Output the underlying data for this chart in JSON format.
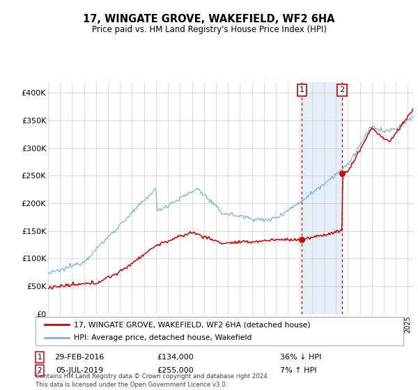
{
  "title": "17, WINGATE GROVE, WAKEFIELD, WF2 6HA",
  "subtitle": "Price paid vs. HM Land Registry's House Price Index (HPI)",
  "legend_line1": "17, WINGATE GROVE, WAKEFIELD, WF2 6HA (detached house)",
  "legend_line2": "HPI: Average price, detached house, Wakefield",
  "footnote": "Contains HM Land Registry data © Crown copyright and database right 2024.\nThis data is licensed under the Open Government Licence v3.0.",
  "transaction1": {
    "label": "1",
    "date": "29-FEB-2016",
    "price": "£134,000",
    "pct": "36% ↓ HPI",
    "x_year": 2016.17,
    "y_val": 134000
  },
  "transaction2": {
    "label": "2",
    "date": "05-JUL-2019",
    "price": "£255,000",
    "pct": "7% ↑ HPI",
    "x_year": 2019.51,
    "y_val": 255000
  },
  "hpi_color": "#7ab3d9",
  "price_color": "#cc0000",
  "background_shade": "#dce9f5",
  "ylim": [
    0,
    420000
  ],
  "yticks": [
    0,
    50000,
    100000,
    150000,
    200000,
    250000,
    300000,
    350000,
    400000
  ],
  "ytick_labels": [
    "£0",
    "£50K",
    "£100K",
    "£150K",
    "£200K",
    "£250K",
    "£300K",
    "£350K",
    "£400K"
  ],
  "xlim_start": 1995.0,
  "xlim_end": 2025.5
}
